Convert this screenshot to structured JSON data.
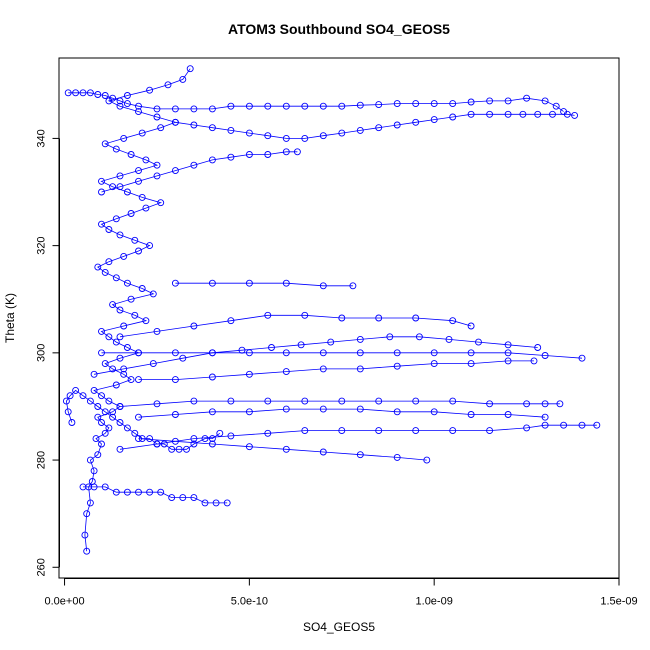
{
  "chart_data": {
    "type": "scatter",
    "title": "ATOM3 Southbound SO4_GEOS5",
    "xlabel": "SO4_GEOS5",
    "ylabel": "Theta (K)",
    "xlim": [
      -1.5e-11,
      1.5e-09
    ],
    "ylim": [
      258,
      355
    ],
    "xticks": [
      0,
      5e-10,
      1e-09,
      1.5e-09
    ],
    "xtick_labels": [
      "0.0e+00",
      "5.0e-10",
      "1.0e-09",
      "1.5e-09"
    ],
    "yticks": [
      260,
      280,
      300,
      320,
      340
    ],
    "ytick_labels": [
      "260",
      "280",
      "300",
      "320",
      "340"
    ],
    "marker": "open-circle",
    "connected": true,
    "colors": {
      "series": "#0000ff",
      "axes": "#000000",
      "background": "#ffffff"
    },
    "grid": false,
    "series": [
      {
        "x": [
          6e-11,
          5.5e-11,
          6e-11,
          7e-11,
          6.5e-11,
          7.5e-11,
          8e-11,
          7e-11,
          9e-11,
          1e-10,
          8.5e-11,
          1.1e-10,
          1.2e-10,
          1e-10,
          9e-11,
          1.3e-10,
          1.5e-10,
          1.2e-10,
          1e-10,
          8e-11,
          1.4e-10,
          1.8e-10,
          1.6e-10,
          1.3e-10,
          1.1e-10,
          1.5e-10,
          2e-10,
          1.7e-10,
          1.4e-10,
          1.2e-10,
          1e-10,
          1.6e-10,
          2.2e-10,
          1.9e-10,
          1.5e-10,
          1.3e-10,
          1.8e-10,
          2.4e-10,
          2.1e-10,
          1.7e-10,
          1.4e-10,
          1.1e-10,
          9e-11,
          1.2e-10,
          1.6e-10,
          2e-10,
          2.3e-10,
          1.9e-10,
          1.5e-10,
          1.2e-10,
          1e-10,
          1.4e-10,
          1.8e-10,
          2.2e-10,
          2.6e-10,
          2.1e-10,
          1.7e-10,
          1.3e-10,
          1e-10,
          1.5e-10,
          2e-10,
          2.5e-10,
          2.2e-10,
          1.8e-10,
          1.4e-10,
          1.1e-10,
          1.6e-10,
          2.1e-10,
          2.6e-10,
          3e-10,
          2.5e-10,
          2e-10,
          1.5e-10,
          1.2e-10,
          1.7e-10,
          2.3e-10,
          2.8e-10,
          3.2e-10,
          3.4e-10
        ],
        "y": [
          263,
          266,
          270,
          272,
          275,
          276,
          278,
          280,
          281,
          283,
          284,
          285,
          286,
          287,
          288,
          289,
          290,
          291,
          292,
          293,
          294,
          295,
          296,
          297,
          298,
          299,
          300,
          301,
          302,
          303,
          304,
          305,
          306,
          307,
          308,
          309,
          310,
          311,
          312,
          313,
          314,
          315,
          316,
          317,
          318,
          319,
          320,
          321,
          322,
          323,
          324,
          325,
          326,
          327,
          328,
          329,
          330,
          331,
          332,
          333,
          334,
          335,
          336,
          337,
          338,
          339,
          340,
          341,
          342,
          343,
          344,
          345,
          346,
          347,
          348,
          349,
          350,
          351,
          353
        ]
      },
      {
        "x": [
          2e-11,
          1e-11,
          5e-12,
          1.5e-11,
          3e-11,
          5e-11,
          7e-11,
          9e-11,
          1.1e-10,
          1.3e-10,
          1.5e-10,
          1.7e-10,
          1.9e-10,
          2.1e-10,
          2.3e-10,
          2.5e-10,
          2.7e-10,
          2.9e-10,
          3.1e-10,
          3.3e-10,
          3.5e-10,
          3.8e-10,
          4e-10,
          4.2e-10
        ],
        "y": [
          287,
          289,
          291,
          292,
          293,
          292,
          291,
          290,
          289,
          288,
          287,
          286,
          285,
          284,
          284,
          283,
          283,
          282,
          282,
          282,
          283,
          284,
          284,
          285
        ]
      },
      {
        "x": [
          5e-11,
          8e-11,
          1.1e-10,
          1.4e-10,
          1.7e-10,
          2e-10,
          2.3e-10,
          2.6e-10,
          2.9e-10,
          3.2e-10,
          3.5e-10,
          3.8e-10,
          4.1e-10,
          4.4e-10
        ],
        "y": [
          275,
          275,
          275,
          274,
          274,
          274,
          274,
          274,
          273,
          273,
          273,
          272,
          272,
          272
        ]
      },
      {
        "x": [
          1e-11,
          3e-11,
          5e-11,
          7e-11,
          9e-11,
          1.1e-10,
          1.3e-10,
          1.5e-10,
          1.7e-10,
          2e-10,
          2.5e-10,
          3e-10,
          3.5e-10,
          4e-10,
          4.5e-10,
          5e-10,
          5.5e-10,
          6e-10,
          6.5e-10,
          7e-10,
          7.5e-10,
          8e-10,
          8.5e-10,
          9e-10,
          9.5e-10,
          1e-09,
          1.05e-09,
          1.1e-09,
          1.15e-09,
          1.2e-09,
          1.25e-09,
          1.3e-09,
          1.33e-09,
          1.35e-09
        ],
        "y": [
          348.5,
          348.5,
          348.5,
          348.5,
          348.2,
          348,
          347.5,
          347,
          346.5,
          346,
          345.5,
          345.5,
          345.5,
          345.5,
          346,
          346,
          346,
          346,
          346,
          346,
          346,
          346.2,
          346.3,
          346.5,
          346.5,
          346.5,
          346.5,
          346.8,
          347,
          347,
          347.5,
          347,
          346,
          345
        ]
      },
      {
        "x": [
          3e-10,
          3.5e-10,
          4e-10,
          4.5e-10,
          5e-10,
          5.5e-10,
          6e-10,
          6.5e-10,
          7e-10,
          7.5e-10,
          8e-10,
          8.5e-10,
          9e-10,
          9.5e-10,
          1e-09,
          1.05e-09,
          1.1e-09,
          1.15e-09,
          1.2e-09,
          1.24e-09,
          1.28e-09,
          1.32e-09,
          1.36e-09,
          1.38e-09
        ],
        "y": [
          343,
          342.5,
          342,
          341.5,
          341,
          340.5,
          340,
          340,
          340.5,
          341,
          341.5,
          342,
          342.5,
          343,
          343.5,
          344,
          344.5,
          344.5,
          344.5,
          344.5,
          344.5,
          344.5,
          344.5,
          344.3
        ]
      },
      {
        "x": [
          1e-10,
          1.5e-10,
          2e-10,
          2.5e-10,
          3e-10,
          3.5e-10,
          4e-10,
          4.5e-10,
          5e-10,
          5.5e-10,
          6e-10,
          6.3e-10
        ],
        "y": [
          330,
          331,
          332,
          333,
          334,
          335,
          336,
          336.5,
          337,
          337,
          337.5,
          337.5
        ]
      },
      {
        "x": [
          1.5e-10,
          2.5e-10,
          3.5e-10,
          4.5e-10,
          5.5e-10,
          6.5e-10,
          7.5e-10,
          8.5e-10,
          9.5e-10,
          1.05e-09,
          1.15e-09,
          1.25e-09,
          1.3e-09,
          1.35e-09,
          1.4e-09,
          1.44e-09
        ],
        "y": [
          282,
          283,
          284,
          284.5,
          285,
          285.5,
          285.5,
          285.5,
          285.5,
          285.5,
          285.5,
          286,
          286.5,
          286.5,
          286.5,
          286.5
        ]
      },
      {
        "x": [
          1e-10,
          2e-10,
          3e-10,
          4e-10,
          5e-10,
          6e-10,
          7e-10,
          8e-10,
          9e-10,
          1e-09,
          1.1e-09,
          1.2e-09,
          1.3e-09,
          1.4e-09
        ],
        "y": [
          300,
          300,
          300,
          300,
          300,
          300,
          300,
          300,
          300,
          300,
          300,
          300,
          299.5,
          299
        ]
      },
      {
        "x": [
          1.5e-10,
          2.5e-10,
          3.5e-10,
          4.5e-10,
          5.5e-10,
          6.5e-10,
          7.5e-10,
          8.5e-10,
          9.5e-10,
          1.05e-09,
          1.15e-09,
          1.25e-09,
          1.3e-09,
          1.34e-09
        ],
        "y": [
          290,
          290.5,
          291,
          291,
          291,
          291,
          291,
          291,
          291,
          291,
          290.5,
          290.5,
          290.5,
          290.5
        ]
      },
      {
        "x": [
          2e-10,
          3e-10,
          4e-10,
          5e-10,
          6e-10,
          7e-10,
          8e-10,
          9e-10,
          1e-09,
          1.1e-09,
          1.2e-09,
          1.27e-09
        ],
        "y": [
          295,
          295,
          295.5,
          296,
          296.5,
          297,
          297,
          297.5,
          298,
          298,
          298.5,
          298.5
        ]
      },
      {
        "x": [
          1.5e-10,
          2.5e-10,
          3.5e-10,
          4.5e-10,
          5.5e-10,
          6.5e-10,
          7.5e-10,
          8.5e-10,
          9.5e-10,
          1.05e-09,
          1.1e-09
        ],
        "y": [
          303,
          304,
          305,
          306,
          307,
          307,
          306.5,
          306.5,
          306.5,
          306,
          305
        ]
      },
      {
        "x": [
          2e-10,
          3e-10,
          4e-10,
          5e-10,
          6e-10,
          7e-10,
          8e-10,
          9e-10,
          9.8e-10
        ],
        "y": [
          284,
          283.5,
          283,
          282.5,
          282,
          281.5,
          281,
          280.5,
          280
        ]
      },
      {
        "x": [
          3e-10,
          4e-10,
          5e-10,
          6e-10,
          7e-10,
          7.8e-10
        ],
        "y": [
          313,
          313,
          313,
          313,
          312.5,
          312.5
        ]
      },
      {
        "x": [
          2e-10,
          3e-10,
          4e-10,
          5e-10,
          6e-10,
          7e-10,
          8e-10,
          9e-10,
          1e-09,
          1.1e-09,
          1.2e-09,
          1.3e-09
        ],
        "y": [
          288,
          288.5,
          289,
          289,
          289.5,
          289.5,
          289.5,
          289,
          289,
          288.5,
          288.5,
          288
        ]
      },
      {
        "x": [
          8e-11,
          1.6e-10,
          2.4e-10,
          3.2e-10,
          4e-10,
          4.8e-10,
          5.6e-10,
          6.4e-10,
          7.2e-10,
          8e-10,
          8.8e-10,
          9.6e-10,
          1.04e-09,
          1.12e-09,
          1.2e-09,
          1.28e-09
        ],
        "y": [
          296,
          297,
          298,
          299,
          300,
          300.5,
          301,
          301.5,
          302,
          302.5,
          303,
          303,
          302.5,
          302,
          301.5,
          301
        ]
      }
    ]
  }
}
